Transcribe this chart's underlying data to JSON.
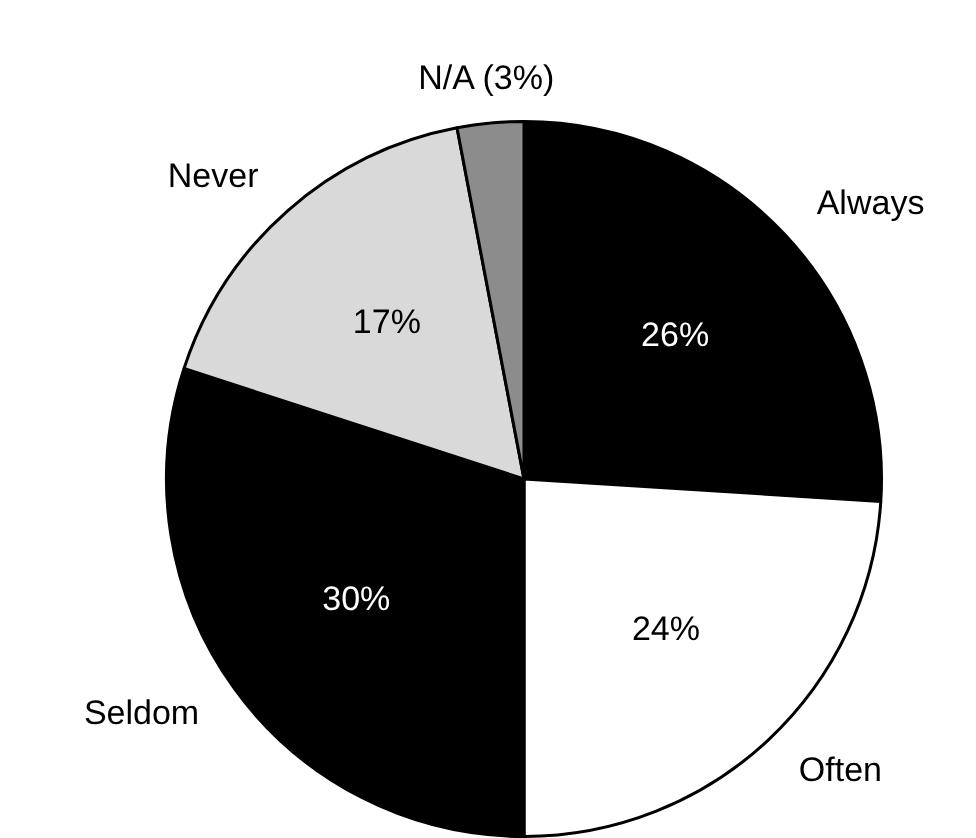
{
  "chart_data": {
    "type": "pie",
    "categories": [
      "Always",
      "Often",
      "Seldom",
      "Never",
      "N/A (3%)"
    ],
    "values": [
      26,
      24,
      30,
      17,
      3
    ],
    "colors": [
      "#000000",
      "#ffffff",
      "#000000",
      "#d9d9d9",
      "#8c8c8c"
    ],
    "value_labels": [
      "26%",
      "24%",
      "30%",
      "17%",
      null
    ]
  }
}
